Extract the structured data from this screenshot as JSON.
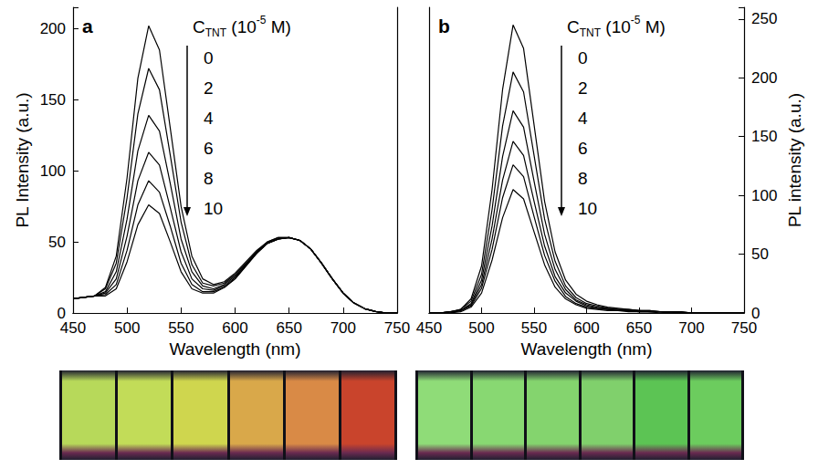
{
  "chart_data": [
    {
      "type": "line",
      "title": "a",
      "legend_title": {
        "text": "C",
        "subscript": "TNT",
        "middle": " (10",
        "superscript": "-5",
        "end": " M)"
      },
      "x_label": "Wavelength (nm)",
      "y_label": "PL Intensity (a.u.)",
      "x": [
        450,
        460,
        470,
        480,
        490,
        500,
        510,
        520,
        530,
        540,
        550,
        560,
        570,
        580,
        590,
        600,
        610,
        620,
        630,
        640,
        650,
        660,
        670,
        680,
        690,
        700,
        710,
        720,
        730,
        740,
        750
      ],
      "xlim": [
        450,
        750
      ],
      "xticks": [
        450,
        500,
        550,
        600,
        650,
        700,
        750
      ],
      "ylim": [
        0,
        215
      ],
      "yticks": [
        0,
        50,
        100,
        150,
        200
      ],
      "grid": false,
      "series": [
        {
          "name": "0",
          "color": "#000000",
          "values": [
            10,
            11,
            12,
            18,
            40,
            95,
            165,
            202,
            185,
            130,
            75,
            40,
            24,
            20,
            22,
            28,
            36,
            44,
            50,
            53,
            53,
            51,
            45,
            35,
            24,
            14,
            7,
            3,
            1,
            0,
            0
          ]
        },
        {
          "name": "2",
          "color": "#000000",
          "values": [
            10,
            11,
            12,
            17,
            35,
            81,
            140,
            172,
            157,
            111,
            64,
            34,
            21,
            19,
            21,
            27,
            35,
            43,
            50,
            53,
            53,
            51,
            45,
            35,
            24,
            14,
            7,
            3,
            1,
            0,
            0
          ]
        },
        {
          "name": "4",
          "color": "#000000",
          "values": [
            10,
            11,
            12,
            15,
            29,
            66,
            114,
            139,
            128,
            91,
            52,
            29,
            19,
            17,
            20,
            26,
            34,
            43,
            49,
            52,
            53,
            51,
            45,
            35,
            24,
            14,
            7,
            3,
            1,
            0,
            0
          ]
        },
        {
          "name": "6",
          "color": "#000000",
          "values": [
            10,
            11,
            12,
            14,
            24,
            54,
            93,
            113,
            104,
            74,
            43,
            24,
            17,
            16,
            19,
            25,
            34,
            42,
            49,
            52,
            53,
            51,
            45,
            35,
            24,
            14,
            7,
            3,
            1,
            0,
            0
          ]
        },
        {
          "name": "8",
          "color": "#000000",
          "values": [
            10,
            11,
            12,
            13,
            20,
            44,
            76,
            93,
            85,
            61,
            35,
            20,
            15,
            15,
            18,
            24,
            33,
            42,
            49,
            52,
            53,
            51,
            45,
            35,
            24,
            14,
            7,
            3,
            1,
            0,
            0
          ]
        },
        {
          "name": "10",
          "color": "#000000",
          "values": [
            10,
            11,
            12,
            12,
            17,
            36,
            62,
            76,
            70,
            50,
            29,
            17,
            14,
            14,
            18,
            24,
            33,
            42,
            49,
            52,
            53,
            51,
            45,
            35,
            24,
            14,
            7,
            3,
            1,
            0,
            0
          ]
        }
      ]
    },
    {
      "type": "line",
      "title": "b",
      "legend_title": {
        "text": "C",
        "subscript": "TNT",
        "middle": " (10",
        "superscript": "-5",
        "end": " M)"
      },
      "x_label": "Wavelength (nm)",
      "y_label": "PL intensity (a.u.)",
      "x": [
        450,
        460,
        470,
        480,
        490,
        500,
        510,
        520,
        530,
        540,
        550,
        560,
        570,
        580,
        590,
        600,
        610,
        620,
        630,
        640,
        650,
        660,
        670,
        680,
        690,
        700,
        710,
        720,
        730,
        740,
        750
      ],
      "xlim": [
        450,
        750
      ],
      "xticks": [
        450,
        500,
        550,
        600,
        650,
        700,
        750
      ],
      "ylim": [
        0,
        260
      ],
      "yticks": [
        0,
        50,
        100,
        150,
        200,
        250
      ],
      "grid": false,
      "series": [
        {
          "name": "0",
          "color": "#000000",
          "values": [
            0,
            0,
            1,
            3,
            12,
            40,
            105,
            190,
            245,
            225,
            160,
            95,
            52,
            28,
            16,
            10,
            7,
            5,
            4,
            3,
            2,
            2,
            1,
            1,
            1,
            0,
            0,
            0,
            0,
            0,
            0
          ]
        },
        {
          "name": "2",
          "color": "#000000",
          "values": [
            0,
            0,
            1,
            3,
            10,
            33,
            88,
            159,
            205,
            188,
            134,
            80,
            44,
            23,
            13,
            8,
            6,
            4,
            3,
            3,
            2,
            2,
            1,
            1,
            1,
            0,
            0,
            0,
            0,
            0,
            0
          ]
        },
        {
          "name": "4",
          "color": "#000000",
          "values": [
            0,
            0,
            1,
            2,
            8,
            28,
            74,
            133,
            172,
            158,
            112,
            67,
            37,
            20,
            11,
            7,
            5,
            4,
            3,
            2,
            2,
            1,
            1,
            1,
            0,
            0,
            0,
            0,
            0,
            0,
            0
          ]
        },
        {
          "name": "6",
          "color": "#000000",
          "values": [
            0,
            0,
            1,
            2,
            7,
            24,
            63,
            113,
            146,
            134,
            95,
            57,
            31,
            17,
            10,
            6,
            4,
            3,
            2,
            2,
            1,
            1,
            1,
            0,
            0,
            0,
            0,
            0,
            0,
            0,
            0
          ]
        },
        {
          "name": "8",
          "color": "#000000",
          "values": [
            0,
            0,
            0,
            2,
            6,
            21,
            54,
            98,
            126,
            116,
            82,
            49,
            27,
            14,
            8,
            5,
            4,
            3,
            2,
            2,
            1,
            1,
            1,
            0,
            0,
            0,
            0,
            0,
            0,
            0,
            0
          ]
        },
        {
          "name": "10",
          "color": "#000000",
          "values": [
            0,
            0,
            0,
            1,
            5,
            17,
            45,
            81,
            105,
            97,
            69,
            41,
            22,
            12,
            7,
            4,
            3,
            2,
            2,
            1,
            1,
            1,
            0,
            0,
            0,
            0,
            0,
            0,
            0,
            0,
            0
          ]
        }
      ]
    }
  ]
}
